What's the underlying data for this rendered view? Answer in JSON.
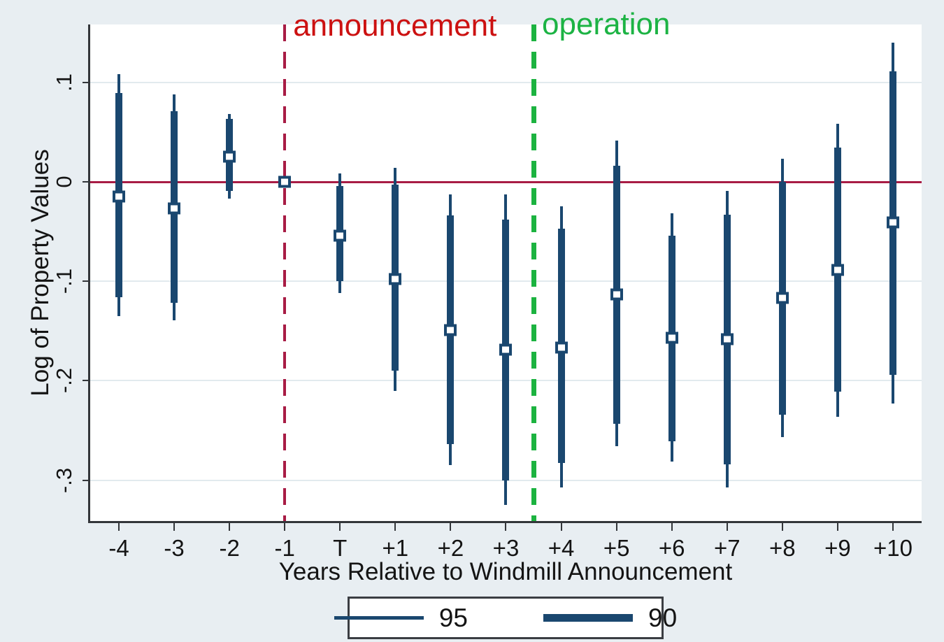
{
  "chart_data": {
    "type": "scatter",
    "subtype": "coefficient-plot-with-error-bars",
    "title": "",
    "xlabel": "Years Relative to Windmill Announcement",
    "ylabel": "Log of Property Values",
    "categories": [
      "-4",
      "-3",
      "-2",
      "-1",
      "T",
      "+1",
      "+2",
      "+3",
      "+4",
      "+5",
      "+6",
      "+7",
      "+8",
      "+9",
      "+10"
    ],
    "ytick_values": [
      0.1,
      0,
      -0.1,
      -0.2,
      -0.3
    ],
    "ytick_labels": [
      ".1",
      "0",
      "-.1",
      "-.2",
      "-.3"
    ],
    "ylim": [
      -0.341,
      0.158
    ],
    "grid": true,
    "zero_reference_line": 0,
    "points": [
      {
        "x": "-4",
        "est": -0.015,
        "ci90": [
          -0.116,
          0.089
        ],
        "ci95": [
          -0.135,
          0.108
        ]
      },
      {
        "x": "-3",
        "est": -0.027,
        "ci90": [
          -0.122,
          0.071
        ],
        "ci95": [
          -0.139,
          0.088
        ]
      },
      {
        "x": "-2",
        "est": 0.025,
        "ci90": [
          -0.009,
          0.063
        ],
        "ci95": [
          -0.017,
          0.068
        ]
      },
      {
        "x": "-1",
        "est": 0.0,
        "ci90": null,
        "ci95": null,
        "reference": true
      },
      {
        "x": "T",
        "est": -0.054,
        "ci90": [
          -0.1,
          -0.004
        ],
        "ci95": [
          -0.112,
          0.008
        ]
      },
      {
        "x": "+1",
        "est": -0.098,
        "ci90": [
          -0.19,
          -0.003
        ],
        "ci95": [
          -0.21,
          0.014
        ]
      },
      {
        "x": "+2",
        "est": -0.149,
        "ci90": [
          -0.264,
          -0.034
        ],
        "ci95": [
          -0.285,
          -0.013
        ]
      },
      {
        "x": "+3",
        "est": -0.169,
        "ci90": [
          -0.3,
          -0.038
        ],
        "ci95": [
          -0.325,
          -0.013
        ]
      },
      {
        "x": "+4",
        "est": -0.167,
        "ci90": [
          -0.283,
          -0.047
        ],
        "ci95": [
          -0.307,
          -0.025
        ]
      },
      {
        "x": "+5",
        "est": -0.113,
        "ci90": [
          -0.243,
          0.016
        ],
        "ci95": [
          -0.266,
          0.041
        ]
      },
      {
        "x": "+6",
        "est": -0.157,
        "ci90": [
          -0.261,
          -0.054
        ],
        "ci95": [
          -0.281,
          -0.032
        ]
      },
      {
        "x": "+7",
        "est": -0.158,
        "ci90": [
          -0.284,
          -0.033
        ],
        "ci95": [
          -0.307,
          -0.009
        ]
      },
      {
        "x": "+8",
        "est": -0.117,
        "ci90": [
          -0.234,
          0.0
        ],
        "ci95": [
          -0.257,
          0.023
        ]
      },
      {
        "x": "+9",
        "est": -0.089,
        "ci90": [
          -0.211,
          0.034
        ],
        "ci95": [
          -0.236,
          0.058
        ]
      },
      {
        "x": "+10",
        "est": -0.041,
        "ci90": [
          -0.194,
          0.111
        ],
        "ci95": [
          -0.223,
          0.14
        ]
      }
    ],
    "annotations": [
      {
        "text": "announcement",
        "at_category": "-1",
        "category_index": 3,
        "line_style": "dashed",
        "text_color": "#cc1111",
        "line_color": "#a81c45"
      },
      {
        "text": "operation",
        "at_category": "+3.5",
        "category_index": 7.5,
        "line_style": "dashed",
        "text_color": "#1cb344",
        "line_color": "#1cb340"
      }
    ],
    "legend": {
      "position": "bottom-center",
      "entries": [
        {
          "label": "95",
          "meaning": "95% confidence interval",
          "weight": "thin"
        },
        {
          "label": "90",
          "meaning": "90% confidence interval",
          "weight": "thick"
        }
      ]
    },
    "colors": {
      "bar": "#1a476f",
      "zero_line": "#a81c45",
      "announcement_line": "#a81c45",
      "announcement_text": "#cc1111",
      "operation_line": "#1cb340",
      "operation_text": "#1cb344",
      "background": "#e8eef2",
      "plot_background": "#ffffff",
      "gridline": "#e2eaee",
      "axis": "#33363a",
      "text": "#141414"
    }
  },
  "layout_note": "Stata-style event-study coefficient plot"
}
